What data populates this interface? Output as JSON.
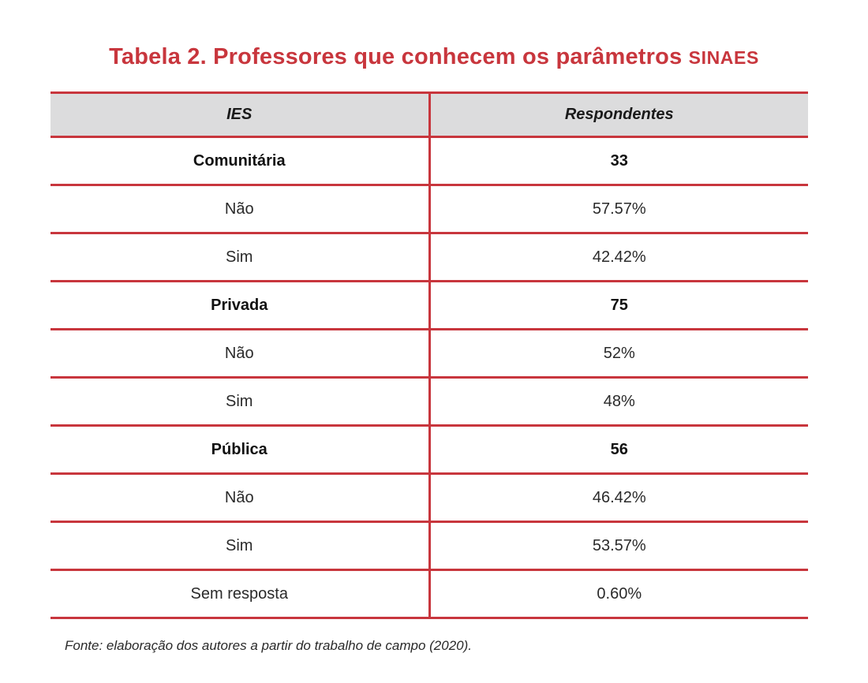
{
  "title": {
    "main": "Tabela 2. Professores que conhecem os parâmetros ",
    "acronym": "SINAES"
  },
  "table": {
    "headers": [
      "IES",
      "Respondentes"
    ],
    "rows": [
      {
        "label": "Comunitária",
        "value": "33",
        "group": true
      },
      {
        "label": "Não",
        "value": "57.57%",
        "group": false
      },
      {
        "label": "Sim",
        "value": "42.42%",
        "group": false
      },
      {
        "label": "Privada",
        "value": "75",
        "group": true
      },
      {
        "label": "Não",
        "value": "52%",
        "group": false
      },
      {
        "label": "Sim",
        "value": "48%",
        "group": false
      },
      {
        "label": "Pública",
        "value": "56",
        "group": true
      },
      {
        "label": "Não",
        "value": "46.42%",
        "group": false
      },
      {
        "label": "Sim",
        "value": "53.57%",
        "group": false
      },
      {
        "label": "Sem resposta",
        "value": "0.60%",
        "group": false
      }
    ]
  },
  "source": "Fonte: elaboração dos autores a partir do trabalho de campo (2020).",
  "colors": {
    "accent": "#c8363d",
    "header_bg": "#dcdcdd"
  }
}
